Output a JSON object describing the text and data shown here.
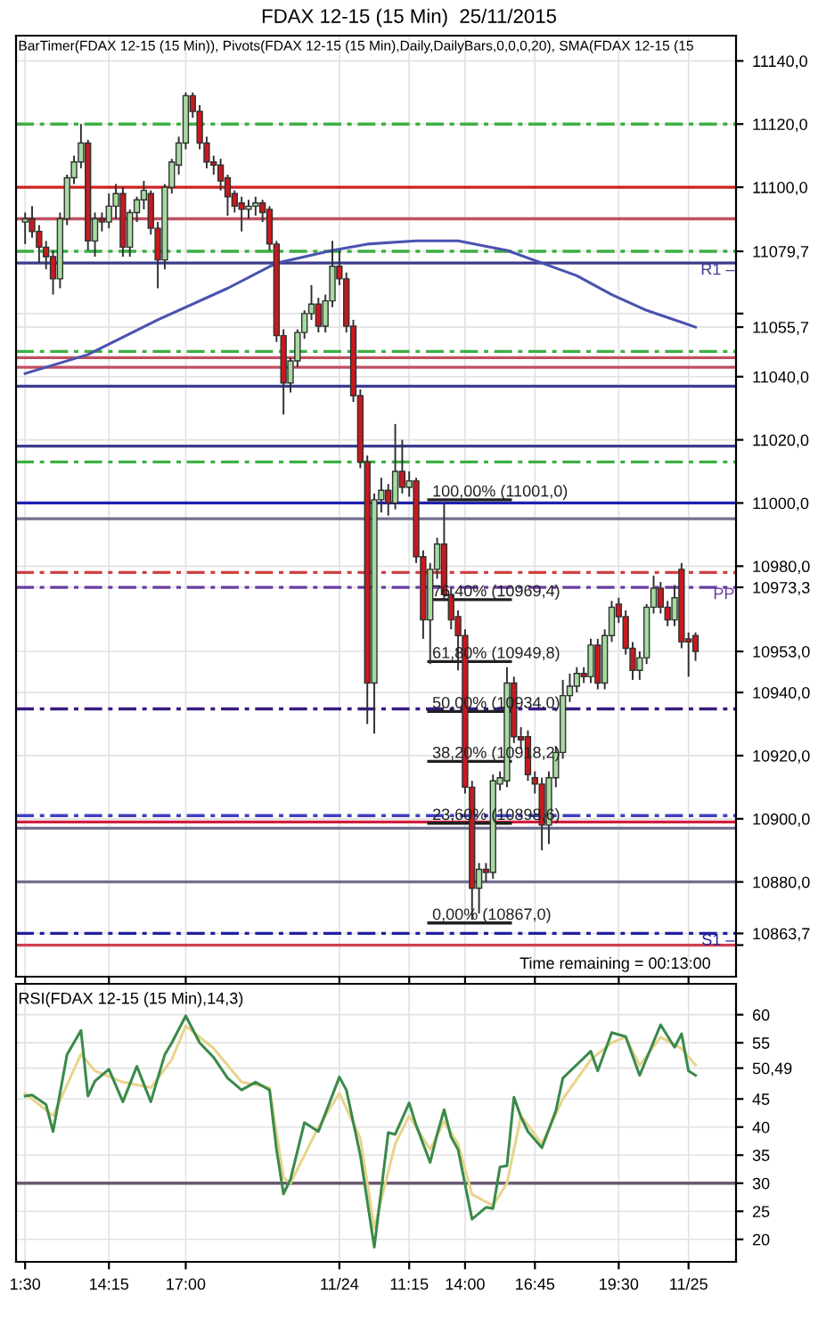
{
  "chart_data": [
    {
      "type": "candlestick",
      "title": "FDAX 12-15 (15 Min)  25/11/2015",
      "subtitle": "BarTimer(FDAX 12-15 (15 Min)), Pivots(FDAX 12-15 (15 Min),Daily,DailyBars,0,0,0,20), SMA(FDAX 12-15 (15",
      "categories": [
        "1:30",
        null,
        null,
        null,
        null,
        null,
        null,
        null,
        null,
        null,
        null,
        null,
        "14:15",
        null,
        null,
        null,
        null,
        null,
        null,
        null,
        null,
        null,
        null,
        "17:00",
        null,
        null,
        null,
        null,
        null,
        null,
        null,
        null,
        null,
        null,
        null,
        null,
        null,
        null,
        null,
        null,
        null,
        null,
        null,
        null,
        null,
        "11/24",
        null,
        null,
        null,
        null,
        null,
        null,
        null,
        null,
        null,
        "11:15",
        null,
        null,
        null,
        null,
        null,
        null,
        null,
        "14:00",
        null,
        null,
        null,
        null,
        null,
        null,
        null,
        null,
        null,
        "16:45",
        null,
        null,
        null,
        null,
        null,
        null,
        null,
        null,
        null,
        null,
        null,
        "19:30",
        null,
        null,
        null,
        null,
        null,
        null,
        null,
        null,
        null,
        "11/25",
        null
      ],
      "ohlc": [
        [
          11089,
          11092,
          11082,
          11090
        ],
        [
          11090,
          11094,
          11084,
          11086
        ],
        [
          11086,
          11088,
          11076,
          11081
        ],
        [
          11081,
          11083,
          11074,
          11078
        ],
        [
          11078,
          11080,
          11066,
          11071
        ],
        [
          11071,
          11092,
          11068,
          11090
        ],
        [
          11090,
          11104,
          11088,
          11103
        ],
        [
          11103,
          11110,
          11101,
          11108
        ],
        [
          11108,
          11120,
          11106,
          11114
        ],
        [
          11114,
          11115,
          11080,
          11083
        ],
        [
          11083,
          11092,
          11078,
          11090
        ],
        [
          11090,
          11092,
          11086,
          11089
        ],
        [
          11089,
          11098,
          11087,
          11094
        ],
        [
          11094,
          11101,
          11090,
          11098
        ],
        [
          11098,
          11100,
          11078,
          11081
        ],
        [
          11081,
          11093,
          11078,
          11092
        ],
        [
          11092,
          11097,
          11089,
          11096
        ],
        [
          11096,
          11102,
          11093,
          11099
        ],
        [
          11098,
          11099,
          11085,
          11087
        ],
        [
          11087,
          11089,
          11068,
          11077
        ],
        [
          11077,
          11101,
          11074,
          11100
        ],
        [
          11100,
          11109,
          11098,
          11108
        ],
        [
          11107,
          11116,
          11104,
          11114
        ],
        [
          11114,
          11130,
          11112,
          11129
        ],
        [
          11129,
          11130,
          11122,
          11124
        ],
        [
          11124,
          11126,
          11112,
          11114
        ],
        [
          11114,
          11116,
          11106,
          11108
        ],
        [
          11108,
          11110,
          11104,
          11107
        ],
        [
          11107,
          11109,
          11099,
          11102
        ],
        [
          11103,
          11104,
          11091,
          11097
        ],
        [
          11098,
          11099,
          11092,
          11094
        ],
        [
          11095,
          11097,
          11086,
          11093
        ],
        [
          11093,
          11096,
          11090,
          11094
        ],
        [
          11094,
          11097,
          11091,
          11095
        ],
        [
          11095,
          11096,
          11089,
          11092
        ],
        [
          11093,
          11094,
          11080,
          11082
        ],
        [
          11082,
          11083,
          11051,
          11053
        ],
        [
          11053,
          11055,
          11028,
          11038
        ],
        [
          11038,
          11046,
          11035,
          11045
        ],
        [
          11045,
          11055,
          11043,
          11054
        ],
        [
          11054,
          11061,
          11052,
          11060
        ],
        [
          11060,
          11069,
          11058,
          11063
        ],
        [
          11063,
          11065,
          11054,
          11056
        ],
        [
          11056,
          11066,
          11054,
          11064
        ],
        [
          11064,
          11083,
          11062,
          11075
        ],
        [
          11075,
          11080,
          11069,
          11071
        ],
        [
          11071,
          11073,
          11054,
          11056
        ],
        [
          11056,
          11058,
          11032,
          11034
        ],
        [
          11034,
          11036,
          11011,
          11013
        ],
        [
          11013,
          11015,
          10930,
          10943
        ],
        [
          10943,
          11003,
          10927,
          11001
        ],
        [
          11001,
          11008,
          10997,
          11004
        ],
        [
          11004,
          11006,
          10996,
          11000
        ],
        [
          11000,
          11025,
          10998,
          11010
        ],
        [
          11010,
          11020,
          11003,
          11005
        ],
        [
          11005,
          11010,
          11002,
          11007
        ],
        [
          11007,
          11008,
          10981,
          10983
        ],
        [
          10983,
          10985,
          10957,
          10963
        ],
        [
          10963,
          10981,
          10949,
          10979
        ],
        [
          10979,
          10989,
          10976,
          10987
        ],
        [
          10987,
          11000,
          10969,
          10971
        ],
        [
          10971,
          10973,
          10960,
          10963
        ],
        [
          10964,
          10966,
          10947,
          10958
        ],
        [
          10958,
          10960,
          10908,
          10910
        ],
        [
          10910,
          10912,
          10868,
          10878
        ],
        [
          10878,
          10886,
          10870,
          10884
        ],
        [
          10884,
          10886,
          10880,
          10883
        ],
        [
          10883,
          10914,
          10881,
          10912
        ],
        [
          10911,
          10915,
          10909,
          10913
        ],
        [
          10912,
          10948,
          10910,
          10943
        ],
        [
          10943,
          10945,
          10924,
          10926
        ],
        [
          10926,
          10929,
          10922,
          10925
        ],
        [
          10926,
          10928,
          10912,
          10914
        ],
        [
          10913,
          10915,
          10908,
          10911
        ],
        [
          10911,
          10913,
          10890,
          10898
        ],
        [
          10898,
          10915,
          10892,
          10913
        ],
        [
          10913,
          10923,
          10910,
          10921
        ],
        [
          10921,
          10944,
          10919,
          10939
        ],
        [
          10939,
          10946,
          10937,
          10942
        ],
        [
          10942,
          10948,
          10940,
          10946
        ],
        [
          10946,
          10948,
          10943,
          10945
        ],
        [
          10945,
          10957,
          10943,
          10955
        ],
        [
          10955,
          10957,
          10941,
          10943
        ],
        [
          10943,
          10960,
          10941,
          10958
        ],
        [
          10958,
          10969,
          10956,
          10967
        ],
        [
          10968,
          10970,
          10962,
          10964
        ],
        [
          10964,
          10966,
          10952,
          10954
        ],
        [
          10954,
          10956,
          10944,
          10947
        ],
        [
          10947,
          10953,
          10944,
          10951
        ],
        [
          10951,
          10968,
          10949,
          10967
        ],
        [
          10967,
          10977,
          10965,
          10973
        ],
        [
          10973,
          10975,
          10965,
          10967
        ],
        [
          10967,
          10969,
          10961,
          10963
        ],
        [
          10963,
          10974,
          10961,
          10970
        ],
        [
          10979,
          10981,
          10954,
          10956
        ],
        [
          10957,
          10959,
          10945,
          10956
        ],
        [
          10958,
          10959,
          10950,
          10953
        ]
      ],
      "series": [
        {
          "type": "line",
          "color": "#4a52b0",
          "values": [
            11041,
            null,
            null,
            null,
            null,
            null,
            null,
            null,
            null,
            11047,
            null,
            null,
            null,
            null,
            null,
            null,
            null,
            null,
            null,
            11058,
            null,
            null,
            null,
            null,
            null,
            null,
            null,
            null,
            null,
            11068,
            null,
            null,
            null,
            null,
            null,
            null,
            11076,
            null,
            null,
            null,
            null,
            null,
            null,
            null,
            11080,
            null,
            null,
            null,
            null,
            11082,
            null,
            null,
            null,
            null,
            null,
            null,
            11083,
            null,
            null,
            null,
            null,
            null,
            11083,
            null,
            null,
            null,
            null,
            null,
            null,
            11080,
            null,
            null,
            null,
            null,
            11076,
            null,
            null,
            null,
            null,
            11072,
            null,
            null,
            null,
            null,
            11066,
            null,
            null,
            null,
            null,
            11061,
            null,
            null,
            null,
            null,
            null,
            null,
            11055.7
          ]
        }
      ],
      "ylim": [
        10850,
        11148
      ],
      "yticks": [
        {
          "value": 11140,
          "label": "11140,0"
        },
        {
          "value": 11120,
          "label": "11120,0"
        },
        {
          "value": 11100,
          "label": "11100,0"
        },
        {
          "value": 11079.7,
          "label": "11079,7"
        },
        {
          "value": 11060,
          "label": null
        },
        {
          "value": 11055.7,
          "label": "11055,7"
        },
        {
          "value": 11040,
          "label": "11040,0"
        },
        {
          "value": 11020,
          "label": "11020,0"
        },
        {
          "value": 11000,
          "label": "11000,0"
        },
        {
          "value": 10980,
          "label": "10980,0"
        },
        {
          "value": 10973.3,
          "label": "10973,3"
        },
        {
          "value": 10953,
          "label": "10953,0"
        },
        {
          "value": 10940,
          "label": "10940,0"
        },
        {
          "value": 10920,
          "label": "10920,0"
        },
        {
          "value": 10900,
          "label": "10900,0"
        },
        {
          "value": 10880,
          "label": "10880,0"
        },
        {
          "value": 10863.7,
          "label": "10863,7"
        },
        {
          "value": 10860,
          "label": null
        }
      ],
      "ref_lines": [
        {
          "axis": "y",
          "value": 11120,
          "color": "#3cb043",
          "line_style": "dashed"
        },
        {
          "axis": "y",
          "value": 11100,
          "color": "#d02020",
          "line_style": "solid"
        },
        {
          "axis": "y",
          "value": 11090,
          "color": "#c05060",
          "line_style": "solid"
        },
        {
          "axis": "y",
          "value": 11079.7,
          "color": "#3cb043",
          "line_style": "dashed"
        },
        {
          "axis": "y",
          "value": 11076,
          "color": "#3c3c90",
          "line_style": "solid",
          "label": "R1 –"
        },
        {
          "axis": "y",
          "value": 11048,
          "color": "#3cb043",
          "line_style": "dashed"
        },
        {
          "axis": "y",
          "value": 11046,
          "color": "#c05060",
          "line_style": "solid"
        },
        {
          "axis": "y",
          "value": 11043,
          "color": "#c05060",
          "line_style": "solid"
        },
        {
          "axis": "y",
          "value": 11037,
          "color": "#3c3c90",
          "line_style": "solid"
        },
        {
          "axis": "y",
          "value": 11018,
          "color": "#3c3c90",
          "line_style": "solid"
        },
        {
          "axis": "y",
          "value": 11013,
          "color": "#3cb043",
          "line_style": "dashed"
        },
        {
          "axis": "y",
          "value": 11000,
          "color": "#2020b0",
          "line_style": "solid"
        },
        {
          "axis": "y",
          "value": 10995,
          "color": "#707090",
          "line_style": "solid"
        },
        {
          "axis": "y",
          "value": 10978,
          "color": "#d04040",
          "line_style": "dashed"
        },
        {
          "axis": "y",
          "value": 10973.3,
          "color": "#6a3ca0",
          "line_style": "dashed",
          "label": "PP"
        },
        {
          "axis": "y",
          "value": 10934.8,
          "color": "#3a1a80",
          "line_style": "dashed"
        },
        {
          "axis": "y",
          "value": 10901,
          "color": "#4040c0",
          "line_style": "dashed"
        },
        {
          "axis": "y",
          "value": 10899,
          "color": "#d02040",
          "line_style": "solid"
        },
        {
          "axis": "y",
          "value": 10897,
          "color": "#707090",
          "line_style": "solid"
        },
        {
          "axis": "y",
          "value": 10880,
          "color": "#707090",
          "line_style": "solid"
        },
        {
          "axis": "y",
          "value": 10863.7,
          "color": "#2020a0",
          "line_style": "dashed",
          "label": "S1 –"
        },
        {
          "axis": "y",
          "value": 10860,
          "color": "#d04050",
          "line_style": "solid"
        },
        {
          "axis": "y",
          "value": 11001,
          "color": "#202020",
          "line_style": "solid"
        },
        {
          "axis": "y",
          "value": 10969.4,
          "color": "#202020",
          "line_style": "solid"
        },
        {
          "axis": "y",
          "value": 10949.8,
          "color": "#202020",
          "line_style": "solid"
        },
        {
          "axis": "y",
          "value": 10934,
          "color": "#202020",
          "line_style": "solid"
        },
        {
          "axis": "y",
          "value": 10918.2,
          "color": "#202020",
          "line_style": "solid"
        },
        {
          "axis": "y",
          "value": 10898.6,
          "color": "#202020",
          "line_style": "solid"
        },
        {
          "axis": "y",
          "value": 10867,
          "color": "#202020",
          "line_style": "solid"
        }
      ],
      "annotations": [
        {
          "text": "100,00% (11001,0)",
          "x": "14:00",
          "y": 11001
        },
        {
          "text": "76,40% (10969,4)",
          "x": "14:00",
          "y": 10969.4
        },
        {
          "text": "61,80% (10949,8)",
          "x": "14:00",
          "y": 10949.8
        },
        {
          "text": "50,00% (10934,0)",
          "x": "14:00",
          "y": 10934
        },
        {
          "text": "38,20% (10918,2)",
          "x": "14:00",
          "y": 10918.2
        },
        {
          "text": "23,60% (10898,6)",
          "x": "14:00",
          "y": 10898.6
        },
        {
          "text": "0,00% (10867,0)",
          "x": "14:00",
          "y": 10867
        },
        "Time remaining = 00:13:00"
      ],
      "grid": true,
      "tick_labels": "y"
    },
    {
      "type": "line",
      "title": "RSI(FDAX 12-15 (15 Min),14,3)",
      "categories": [
        "1:30",
        null,
        null,
        null,
        null,
        null,
        null,
        null,
        null,
        null,
        null,
        null,
        "14:15",
        null,
        null,
        null,
        null,
        null,
        null,
        null,
        null,
        null,
        null,
        "17:00",
        null,
        null,
        null,
        null,
        null,
        null,
        null,
        null,
        null,
        null,
        null,
        null,
        null,
        null,
        null,
        null,
        null,
        null,
        null,
        null,
        null,
        "11/24",
        null,
        null,
        null,
        null,
        null,
        null,
        null,
        null,
        null,
        "11:15",
        null,
        null,
        null,
        null,
        null,
        null,
        null,
        "14:00",
        null,
        null,
        null,
        null,
        null,
        null,
        null,
        null,
        null,
        "16:45",
        null,
        null,
        null,
        null,
        null,
        null,
        null,
        null,
        null,
        null,
        null,
        "19:30",
        null,
        null,
        null,
        null,
        null,
        null,
        null,
        null,
        null,
        "11/25",
        null
      ],
      "series": [
        {
          "color": "#e8d48c",
          "values": [
            46,
            null,
            null,
            null,
            42,
            null,
            null,
            null,
            53,
            null,
            50,
            null,
            null,
            null,
            48,
            null,
            null,
            null,
            47,
            null,
            null,
            52,
            null,
            58,
            null,
            null,
            null,
            54,
            null,
            null,
            null,
            48,
            null,
            null,
            null,
            47,
            null,
            31,
            30,
            null,
            null,
            null,
            40,
            null,
            null,
            46,
            null,
            null,
            38,
            null,
            22,
            null,
            null,
            37,
            null,
            42,
            null,
            null,
            36,
            null,
            41,
            null,
            37,
            null,
            28,
            null,
            null,
            26,
            null,
            30,
            null,
            42,
            null,
            null,
            37,
            null,
            null,
            45,
            null,
            null,
            null,
            52,
            null,
            null,
            55,
            null,
            56,
            null,
            51,
            null,
            null,
            56,
            null,
            null,
            54,
            null,
            51
          ]
        },
        {
          "color": "#3a8a4a",
          "values": [
            45.5,
            45.7,
            null,
            44,
            39.2,
            null,
            52.9,
            null,
            57.2,
            45.5,
            48.2,
            null,
            50.3,
            null,
            44.5,
            null,
            50.8,
            null,
            44.5,
            null,
            52.9,
            55,
            null,
            59.8,
            null,
            55,
            null,
            52.4,
            null,
            48.7,
            null,
            46.6,
            null,
            48,
            null,
            46.6,
            36,
            28.1,
            30.7,
            null,
            40.8,
            null,
            39.2,
            null,
            null,
            48.9,
            46.6,
            null,
            35,
            null,
            18.6,
            null,
            39,
            38.7,
            null,
            44.3,
            40.3,
            null,
            33.7,
            38.7,
            43.1,
            38.2,
            36,
            null,
            23.6,
            null,
            25.7,
            25.5,
            32.9,
            33.1,
            45.3,
            41.8,
            39.2,
            null,
            36.3,
            null,
            42.9,
            48.7,
            null,
            51.1,
            null,
            53.5,
            50,
            null,
            56.8,
            null,
            56.1,
            null,
            49.2,
            null,
            null,
            58.2,
            null,
            54.2,
            56.6,
            50,
            49.2
          ]
        }
      ],
      "ylim": [
        16,
        65.5
      ],
      "yticks": [
        20,
        25,
        30,
        35,
        40,
        45,
        {
          "value": 50.49,
          "label": "50,49"
        },
        55,
        60
      ],
      "ref_lines": [
        {
          "axis": "y",
          "value": 30,
          "color": "#6a5a70",
          "line_style": "solid"
        }
      ],
      "grid": true
    }
  ]
}
